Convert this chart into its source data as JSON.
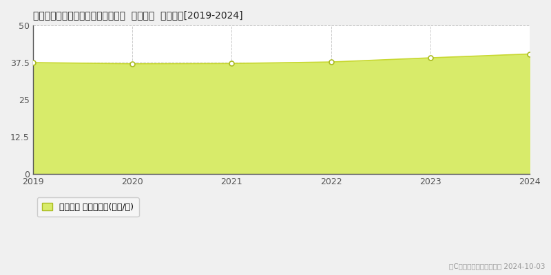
{
  "title": "大阪府堺市堺区南清水町１丁２９番  基準地価  地価推移[2019-2024]",
  "years": [
    2019,
    2020,
    2021,
    2022,
    2023,
    2024
  ],
  "values": [
    37.5,
    37.1,
    37.2,
    37.7,
    39.1,
    40.4
  ],
  "line_color": "#c8d832",
  "fill_color": "#d8eb6a",
  "fill_alpha": 1.0,
  "marker_color": "#ffffff",
  "marker_edge_color": "#aabb22",
  "ylim": [
    0,
    50
  ],
  "yticks": [
    0,
    12.5,
    25,
    37.5,
    50
  ],
  "ytick_labels": [
    "0",
    "12.5",
    "25",
    "37.5",
    "50"
  ],
  "background_color": "#f0f0f0",
  "plot_bg_color": "#ffffff",
  "grid_color_h": "#bbbbbb",
  "grid_color_v": "#cccccc",
  "spine_color": "#555555",
  "tick_color": "#555555",
  "title_fontsize": 12,
  "legend_label": "基準地価 平均坪単価(万円/坪)",
  "copyright_text": "（C）土地価格ドットコム 2024-10-03",
  "legend_box_color": "#f5f5f5",
  "legend_edge_color": "#cccccc"
}
